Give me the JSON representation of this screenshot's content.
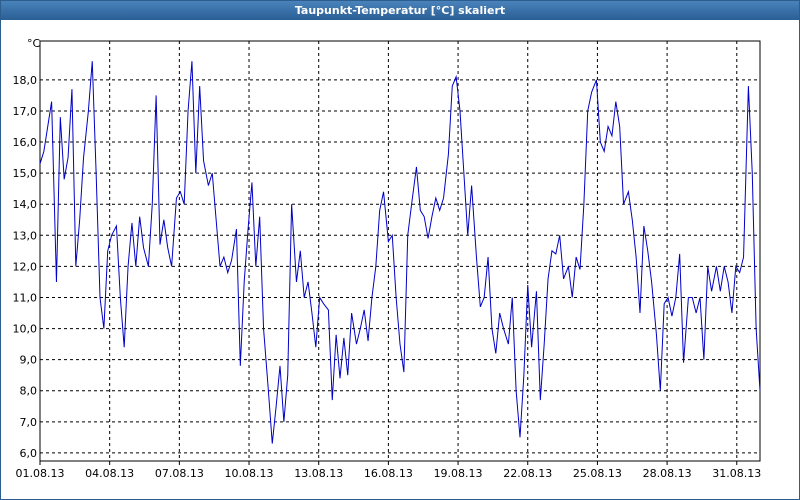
{
  "chart_data": {
    "type": "line",
    "title": "Taupunkt-Temperatur [°C] skaliert",
    "y_unit": "°C",
    "xlim": [
      0,
      744
    ],
    "xticks": [
      {
        "value": 0,
        "label": "01.08.13"
      },
      {
        "value": 72,
        "label": "04.08.13"
      },
      {
        "value": 144,
        "label": "07.08.13"
      },
      {
        "value": 216,
        "label": "10.08.13"
      },
      {
        "value": 288,
        "label": "13.08.13"
      },
      {
        "value": 360,
        "label": "16.08.13"
      },
      {
        "value": 432,
        "label": "19.08.13"
      },
      {
        "value": 504,
        "label": "22.08.13"
      },
      {
        "value": 576,
        "label": "25.08.13"
      },
      {
        "value": 648,
        "label": "28.08.13"
      },
      {
        "value": 720,
        "label": "31.08.13"
      }
    ],
    "ylim": [
      5.74,
      19.25
    ],
    "yticks": [
      {
        "value": 6,
        "label": "6,0"
      },
      {
        "value": 7,
        "label": "7,0"
      },
      {
        "value": 8,
        "label": "8,0"
      },
      {
        "value": 9,
        "label": "9,0"
      },
      {
        "value": 10,
        "label": "10,0"
      },
      {
        "value": 11,
        "label": "11,0"
      },
      {
        "value": 12,
        "label": "12,0"
      },
      {
        "value": 13,
        "label": "13,0"
      },
      {
        "value": 14,
        "label": "14,0"
      },
      {
        "value": 15,
        "label": "15,0"
      },
      {
        "value": 16,
        "label": "16,0"
      },
      {
        "value": 17,
        "label": "17,0"
      },
      {
        "value": 18,
        "label": "18,0"
      }
    ],
    "grid": true,
    "series": [
      {
        "name": "Taupunkt-Temperatur",
        "color": "#0000c8",
        "x": [
          0,
          4,
          8,
          12,
          17,
          21,
          25,
          29,
          33,
          37,
          41,
          45,
          50,
          54,
          58,
          62,
          66,
          70,
          74,
          79,
          83,
          87,
          91,
          95,
          99,
          103,
          107,
          112,
          116,
          120,
          124,
          128,
          132,
          136,
          141,
          145,
          149,
          153,
          157,
          161,
          165,
          169,
          174,
          178,
          182,
          186,
          190,
          194,
          198,
          203,
          207,
          211,
          215,
          219,
          223,
          227,
          231,
          236,
          240,
          244,
          248,
          252,
          256,
          260,
          265,
          269,
          273,
          277,
          281,
          285,
          289,
          293,
          298,
          302,
          306,
          310,
          314,
          318,
          322,
          327,
          331,
          335,
          339,
          343,
          347,
          351,
          355,
          360,
          364,
          368,
          372,
          376,
          380,
          384,
          389,
          393,
          397,
          401,
          405,
          409,
          413,
          417,
          422,
          426,
          430,
          434,
          438,
          442,
          446,
          451,
          455,
          459,
          463,
          467,
          471,
          475,
          479,
          484,
          488,
          492,
          496,
          500,
          504,
          508,
          513,
          517,
          521,
          525,
          529,
          533,
          537,
          541,
          546,
          550,
          554,
          558,
          562,
          566,
          570,
          575,
          579,
          583,
          587,
          591,
          595,
          599,
          603,
          608,
          612,
          616,
          620,
          624,
          628,
          632,
          637,
          641,
          645,
          649,
          653,
          657,
          661,
          665,
          670,
          674,
          678,
          682,
          686,
          690,
          694,
          699,
          703,
          707,
          711,
          715,
          719,
          723,
          727,
          732,
          736,
          740,
          744
        ],
        "values": [
          15.3,
          15.7,
          16.5,
          17.3,
          11.5,
          16.8,
          14.8,
          15.5,
          17.7,
          12.0,
          13.5,
          15.5,
          17.0,
          18.6,
          15.0,
          11.0,
          10.0,
          12.5,
          13.0,
          13.3,
          11.0,
          9.4,
          12.0,
          13.4,
          12.0,
          13.6,
          12.6,
          12.0,
          14.0,
          17.5,
          12.7,
          13.5,
          12.6,
          12.0,
          14.2,
          14.4,
          14.0,
          17.0,
          18.6,
          15.0,
          17.8,
          15.4,
          14.6,
          15.0,
          13.5,
          12.0,
          12.3,
          11.8,
          12.2,
          13.2,
          8.8,
          11.5,
          13.2,
          14.7,
          12.0,
          13.6,
          10.0,
          8.0,
          6.3,
          7.5,
          8.8,
          7.0,
          8.5,
          14.0,
          11.5,
          12.5,
          11.0,
          11.5,
          10.5,
          9.4,
          11.0,
          10.8,
          10.6,
          7.7,
          9.8,
          8.4,
          9.7,
          8.5,
          10.5,
          9.5,
          10.0,
          10.6,
          9.6,
          11.0,
          12.0,
          13.8,
          14.4,
          12.8,
          13.0,
          11.0,
          9.5,
          8.6,
          13.0,
          14.0,
          15.2,
          13.8,
          13.6,
          12.9,
          13.6,
          14.2,
          13.8,
          14.2,
          15.6,
          17.8,
          18.1,
          17.0,
          15.0,
          13.0,
          14.6,
          12.3,
          10.7,
          11.0,
          12.3,
          10.0,
          9.2,
          10.5,
          10.0,
          9.5,
          11.0,
          8.0,
          6.5,
          8.5,
          11.4,
          9.4,
          11.2,
          7.7,
          9.5,
          11.6,
          12.5,
          12.4,
          13.0,
          11.6,
          12.0,
          11.0,
          12.3,
          11.9,
          14.0,
          17.0,
          17.6,
          18.0,
          16.0,
          15.7,
          16.5,
          16.2,
          17.3,
          16.5,
          14.0,
          14.4,
          13.5,
          12.3,
          10.5,
          13.3,
          12.5,
          11.5,
          9.8,
          8.0,
          10.8,
          11.0,
          10.4,
          11.0,
          12.4,
          8.9,
          11.0,
          11.0,
          10.5,
          11.0,
          9.0,
          12.0,
          11.2,
          12.0,
          11.2,
          12.0,
          11.5,
          10.5,
          12.0,
          11.8,
          12.3,
          17.8,
          15.0,
          10.0,
          8.0
        ]
      }
    ]
  }
}
